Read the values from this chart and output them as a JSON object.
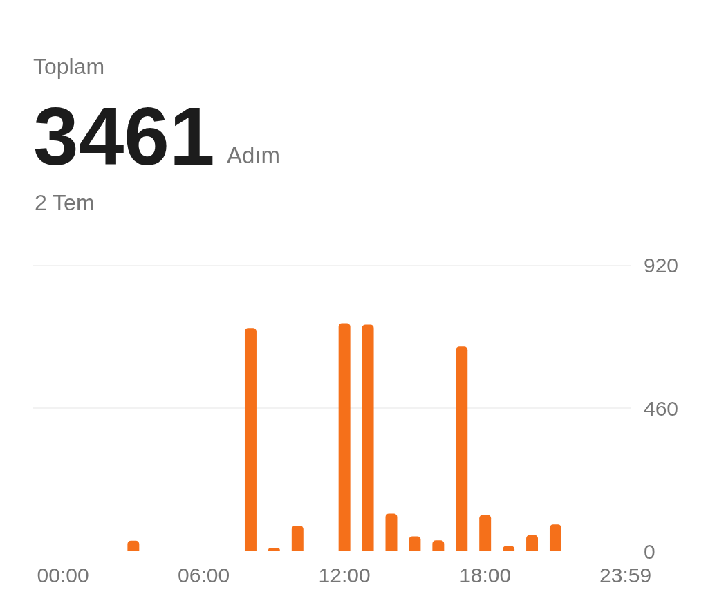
{
  "chart_data": {
    "type": "bar",
    "title": "Toplam",
    "subtitle": "2 Tem",
    "annotations": [
      "3461",
      "Adım"
    ],
    "x": [
      3,
      8,
      9,
      10,
      12,
      13,
      14,
      15,
      16,
      17,
      18,
      19,
      20,
      21
    ],
    "values": [
      34,
      717,
      11,
      82,
      732,
      728,
      121,
      48,
      35,
      657,
      117,
      17,
      52,
      86
    ],
    "color": "#f5701a",
    "xlim": [
      -1.27,
      24.2
    ],
    "xticks": [
      {
        "value": 0,
        "label": "00:00"
      },
      {
        "value": 6,
        "label": "06:00"
      },
      {
        "value": 12,
        "label": "12:00"
      },
      {
        "value": 18,
        "label": "18:00"
      },
      {
        "value": 23.983,
        "label": "23:59"
      }
    ],
    "ylim": [
      0,
      920
    ],
    "yticks": [
      0,
      460,
      920
    ],
    "grid": "y"
  }
}
